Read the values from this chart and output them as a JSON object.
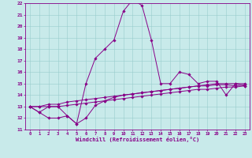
{
  "xlabel": "Windchill (Refroidissement éolien,°C)",
  "bg_color": "#c8eaea",
  "line_color": "#880088",
  "grid_color": "#99cccc",
  "xlim": [
    -0.5,
    23.5
  ],
  "ylim": [
    11,
    22
  ],
  "xticks": [
    0,
    1,
    2,
    3,
    4,
    5,
    6,
    7,
    8,
    9,
    10,
    11,
    12,
    13,
    14,
    15,
    16,
    17,
    18,
    19,
    20,
    21,
    22,
    23
  ],
  "yticks": [
    11,
    12,
    13,
    14,
    15,
    16,
    17,
    18,
    19,
    20,
    21,
    22
  ],
  "line1_x": [
    0,
    1,
    2,
    3,
    4,
    5,
    6,
    7,
    8,
    9,
    10,
    11,
    12,
    13,
    14,
    15,
    16,
    17,
    18,
    19,
    20,
    21,
    22,
    23
  ],
  "line1_y": [
    13.0,
    12.5,
    13.0,
    13.0,
    12.2,
    11.5,
    15.0,
    17.2,
    18.0,
    18.8,
    21.3,
    22.3,
    21.8,
    18.8,
    15.0,
    15.0,
    16.0,
    15.8,
    15.0,
    15.2,
    15.2,
    14.0,
    15.0,
    14.8
  ],
  "line2_x": [
    0,
    1,
    2,
    3,
    4,
    5,
    6,
    7,
    8,
    9,
    10,
    11,
    12,
    13,
    14,
    15,
    16,
    17,
    18,
    19,
    20,
    21,
    22,
    23
  ],
  "line2_y": [
    13.0,
    13.0,
    13.2,
    13.2,
    13.4,
    13.5,
    13.6,
    13.7,
    13.8,
    13.9,
    14.0,
    14.1,
    14.2,
    14.3,
    14.4,
    14.5,
    14.6,
    14.7,
    14.8,
    14.9,
    15.0,
    15.0,
    15.0,
    15.0
  ],
  "line3_x": [
    0,
    1,
    2,
    3,
    4,
    5,
    6,
    7,
    8,
    9,
    10,
    11,
    12,
    13,
    14,
    15,
    16,
    17,
    18,
    19,
    20,
    21,
    22,
    23
  ],
  "line3_y": [
    13.0,
    13.0,
    13.0,
    13.0,
    13.1,
    13.2,
    13.3,
    13.4,
    13.5,
    13.6,
    13.7,
    13.8,
    13.9,
    14.0,
    14.1,
    14.2,
    14.3,
    14.4,
    14.5,
    14.5,
    14.6,
    14.7,
    14.7,
    14.8
  ],
  "line4_x": [
    0,
    1,
    2,
    3,
    4,
    5,
    6,
    7,
    8,
    9,
    10,
    11,
    12,
    13,
    14,
    15,
    16,
    17,
    18,
    19,
    20,
    21,
    22,
    23
  ],
  "line4_y": [
    13.0,
    12.5,
    12.0,
    12.0,
    12.2,
    11.5,
    12.0,
    13.1,
    13.5,
    13.8,
    14.0,
    14.1,
    14.2,
    14.3,
    14.4,
    14.5,
    14.6,
    14.7,
    14.8,
    14.8,
    14.9,
    14.9,
    14.8,
    14.9
  ]
}
